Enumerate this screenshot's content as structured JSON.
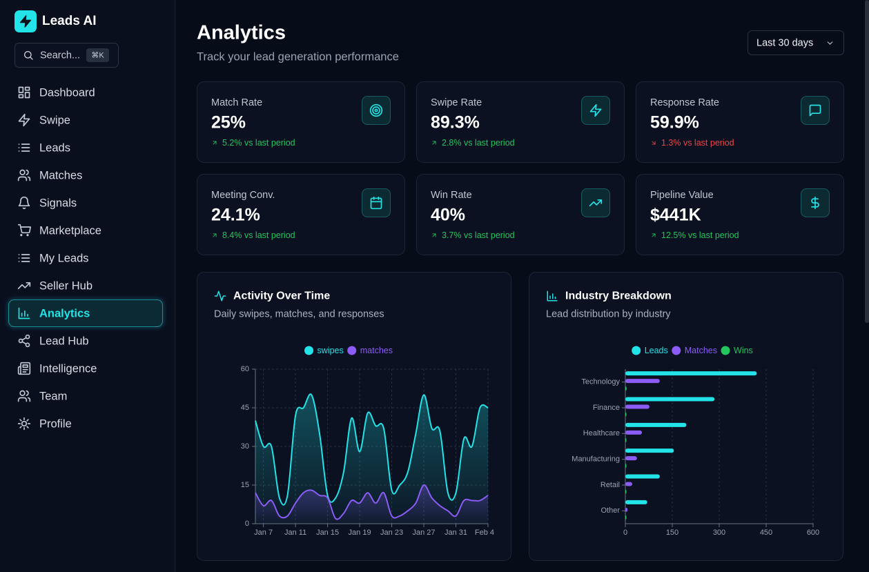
{
  "sidebar": {
    "brand": "Leads AI",
    "search": "Search...",
    "shortcut": "⌘K",
    "nav": [
      "Dashboard",
      "Swipe",
      "Leads",
      "Matches",
      "Signals",
      "Marketplace",
      "My Leads",
      "Seller Hub",
      "Analytics",
      "Lead Hub",
      "Intelligence",
      "Team",
      "Profile"
    ],
    "active": "Analytics"
  },
  "header": {
    "title": "Analytics",
    "subtitle": "Track your lead generation performance",
    "range": "Last 30 days"
  },
  "kpis": [
    {
      "label": "Match Rate",
      "value": "25%",
      "change": "5.2% vs last period",
      "trend": "up"
    },
    {
      "label": "Swipe Rate",
      "value": "89.3%",
      "change": "2.8% vs last period",
      "trend": "up"
    },
    {
      "label": "Response Rate",
      "value": "59.9%",
      "change": "1.3% vs last period",
      "trend": "down"
    },
    {
      "label": "Meeting Conv.",
      "value": "24.1%",
      "change": "8.4% vs last period",
      "trend": "up"
    },
    {
      "label": "Win Rate",
      "value": "40%",
      "change": "3.7% vs last period",
      "trend": "up"
    },
    {
      "label": "Pipeline Value",
      "value": "$441K",
      "change": "12.5% vs last period",
      "trend": "up"
    }
  ],
  "chart_data": [
    {
      "type": "line",
      "title": "Activity Over Time",
      "subtitle": "Daily swipes, matches, and responses",
      "categories": [
        null,
        "Jan 7",
        null,
        null,
        null,
        "Jan 11",
        null,
        null,
        null,
        "Jan 15",
        null,
        null,
        null,
        "Jan 19",
        null,
        null,
        null,
        "Jan 23",
        null,
        null,
        null,
        "Jan 27",
        null,
        null,
        null,
        "Jan 31",
        null,
        null,
        null,
        "Feb 4"
      ],
      "series": [
        {
          "name": "swipes",
          "color": "#22e3e8",
          "values": [
            40,
            30,
            30,
            10,
            11,
            42,
            45,
            50,
            35,
            11,
            10,
            20,
            41,
            28,
            43,
            38,
            37,
            13,
            15,
            20,
            35,
            50,
            37,
            36,
            12,
            12,
            33,
            30,
            45,
            45
          ]
        },
        {
          "name": "matches",
          "color": "#8b5cf6",
          "values": [
            12,
            7,
            9,
            3,
            3,
            8,
            12,
            13,
            11,
            10,
            2,
            4,
            9,
            8,
            12,
            8,
            12,
            3,
            3,
            5,
            8,
            15,
            10,
            7,
            5,
            3,
            9,
            9,
            9,
            11
          ]
        }
      ],
      "ylim": [
        0,
        60
      ],
      "yticks": [
        0,
        15,
        30,
        45,
        60
      ],
      "grid": true,
      "area": true
    },
    {
      "type": "hbar",
      "title": "Industry Breakdown",
      "subtitle": "Lead distribution by industry",
      "categories": [
        "Technology",
        "Finance",
        "Healthcare",
        "Manufacturing",
        "Retail",
        "Other"
      ],
      "series": [
        {
          "name": "Leads",
          "color": "#22e3e8",
          "values": [
            420,
            285,
            195,
            155,
            110,
            70
          ]
        },
        {
          "name": "Matches",
          "color": "#8b5cf6",
          "values": [
            110,
            77,
            53,
            37,
            22,
            7
          ]
        },
        {
          "name": "Wins",
          "color": "#22c55e",
          "values": [
            4,
            2,
            1,
            1,
            0,
            0
          ]
        }
      ],
      "xlim": [
        0,
        600
      ],
      "xticks": [
        0,
        150,
        300,
        450,
        600
      ],
      "grid": true
    }
  ]
}
